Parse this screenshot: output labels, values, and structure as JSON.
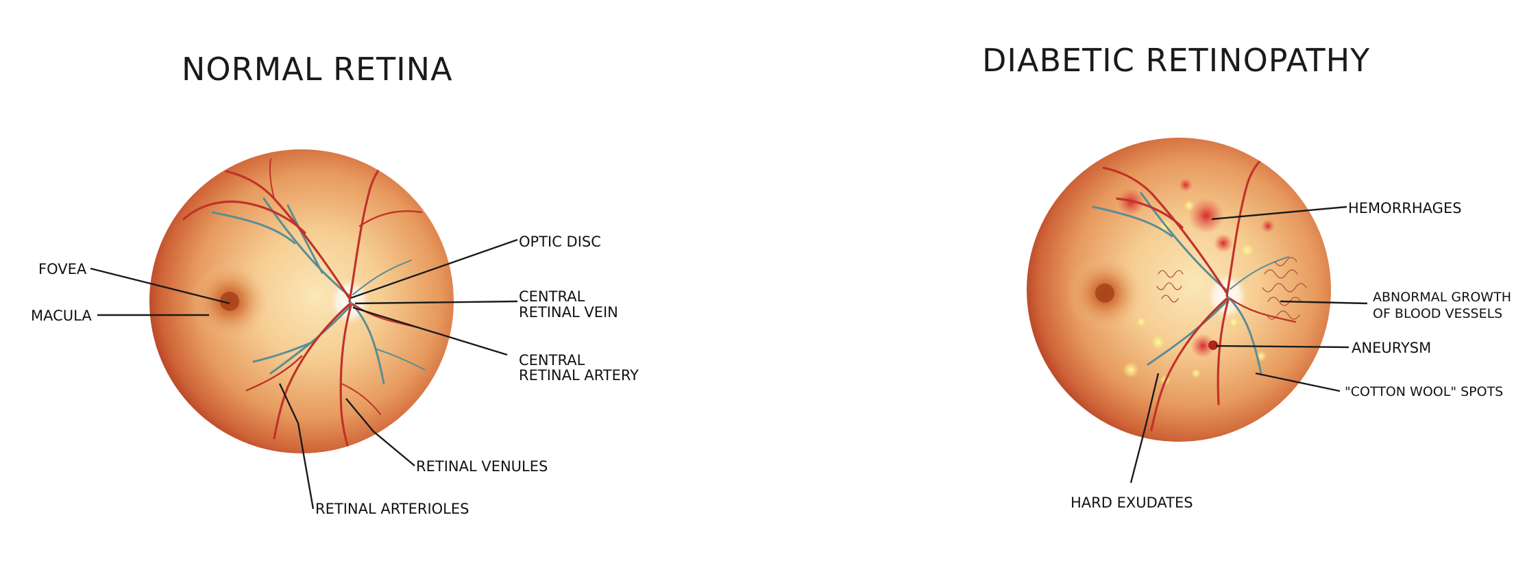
{
  "panels": {
    "normal": {
      "title": "NORMAL RETINA",
      "labels": {
        "fovea": "FOVEA",
        "macula": "MACULA",
        "optic_disc": "OPTIC DISC",
        "central_retinal_vein": [
          "CENTRAL",
          "RETINAL VEIN"
        ],
        "central_retinal_artery": [
          "CENTRAL",
          "RETINAL ARTERY"
        ],
        "retinal_venules": "RETINAL VENULES",
        "retinal_arterioles": "RETINAL ARTERIOLES"
      }
    },
    "diabetic": {
      "title": "DIABETIC RETINOPATHY",
      "labels": {
        "hemorrhages": "HEMORRHAGES",
        "abnormal_growth": [
          "ABNORMAL GROWTH",
          "OF BLOOD VESSELS"
        ],
        "aneurysm": "ANEURYSM",
        "cotton_wool": "\"COTTON WOOL\" SPOTS",
        "hard_exudates": "HARD EXUDATES"
      }
    }
  },
  "colors": {
    "retina_center": "#fbe2ae",
    "retina_mid": "#f0b877",
    "retina_edge": "#bf4a2a",
    "artery": "#c0322a",
    "vein": "#5a8d96",
    "exudate": "#fff27a",
    "hemorrhage": "#d42a2a"
  }
}
